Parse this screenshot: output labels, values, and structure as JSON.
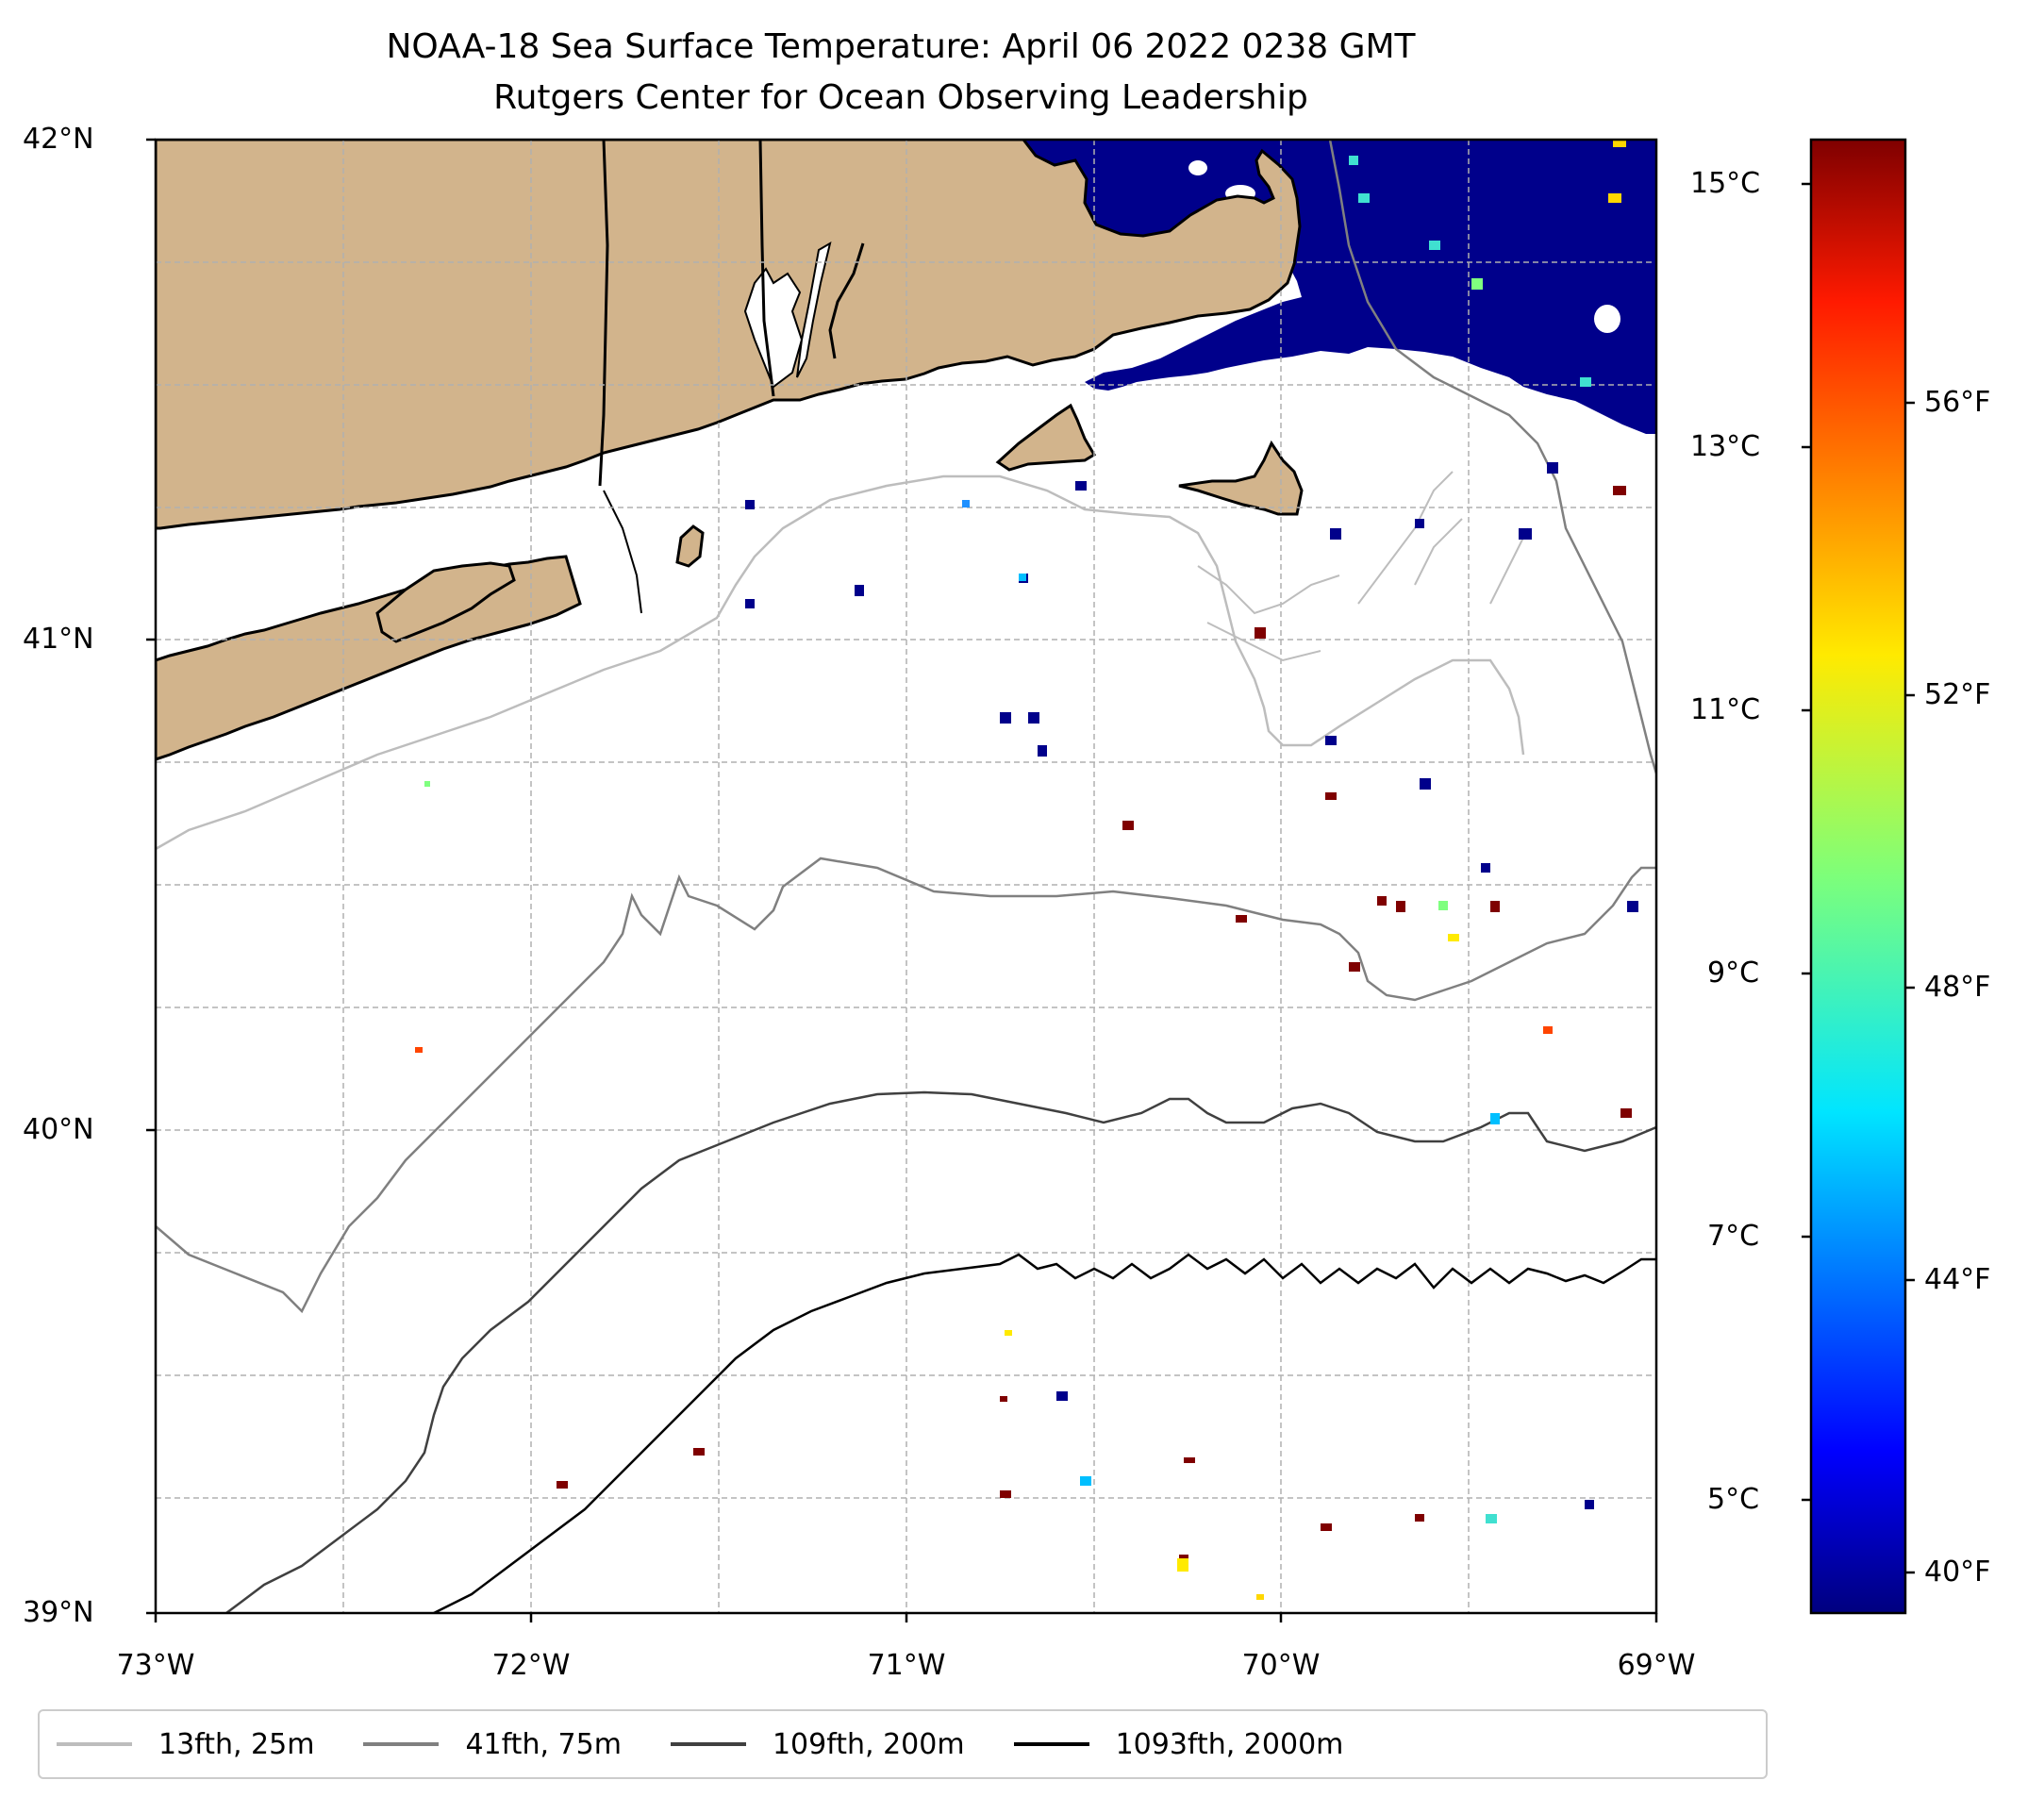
{
  "title": {
    "line1": "NOAA-18 Sea Surface Temperature: April 06 2022 0238 GMT",
    "line2": "Rutgers Center for Ocean Observing Leadership"
  },
  "axes": {
    "y_labels": [
      "42°N",
      "41°N",
      "40°N",
      "39°N"
    ],
    "x_labels": [
      "73°W",
      "72°W",
      "71°W",
      "70°W",
      "69°W"
    ],
    "lat_range": [
      39,
      42
    ],
    "lon_range": [
      -73,
      -69
    ]
  },
  "colorbar": {
    "celsius_labels": [
      "15°C",
      "13°C",
      "11°C",
      "9°C",
      "7°C",
      "5°C"
    ],
    "fahrenheit_labels": [
      "56°F",
      "52°F",
      "48°F",
      "44°F",
      "40°F"
    ],
    "colormap": "jet",
    "range_celsius": [
      4.1,
      15.3
    ]
  },
  "legend": [
    {
      "label": "13fth, 25m",
      "color": "#bdbdbd"
    },
    {
      "label": "41fth, 75m",
      "color": "#808080"
    },
    {
      "label": "109fth, 200m",
      "color": "#404040"
    },
    {
      "label": "1093fth, 2000m",
      "color": "#000000"
    }
  ],
  "colors": {
    "land": "#d2b48c",
    "cold_water": "#00008b",
    "grid": "#b0b0b0"
  }
}
